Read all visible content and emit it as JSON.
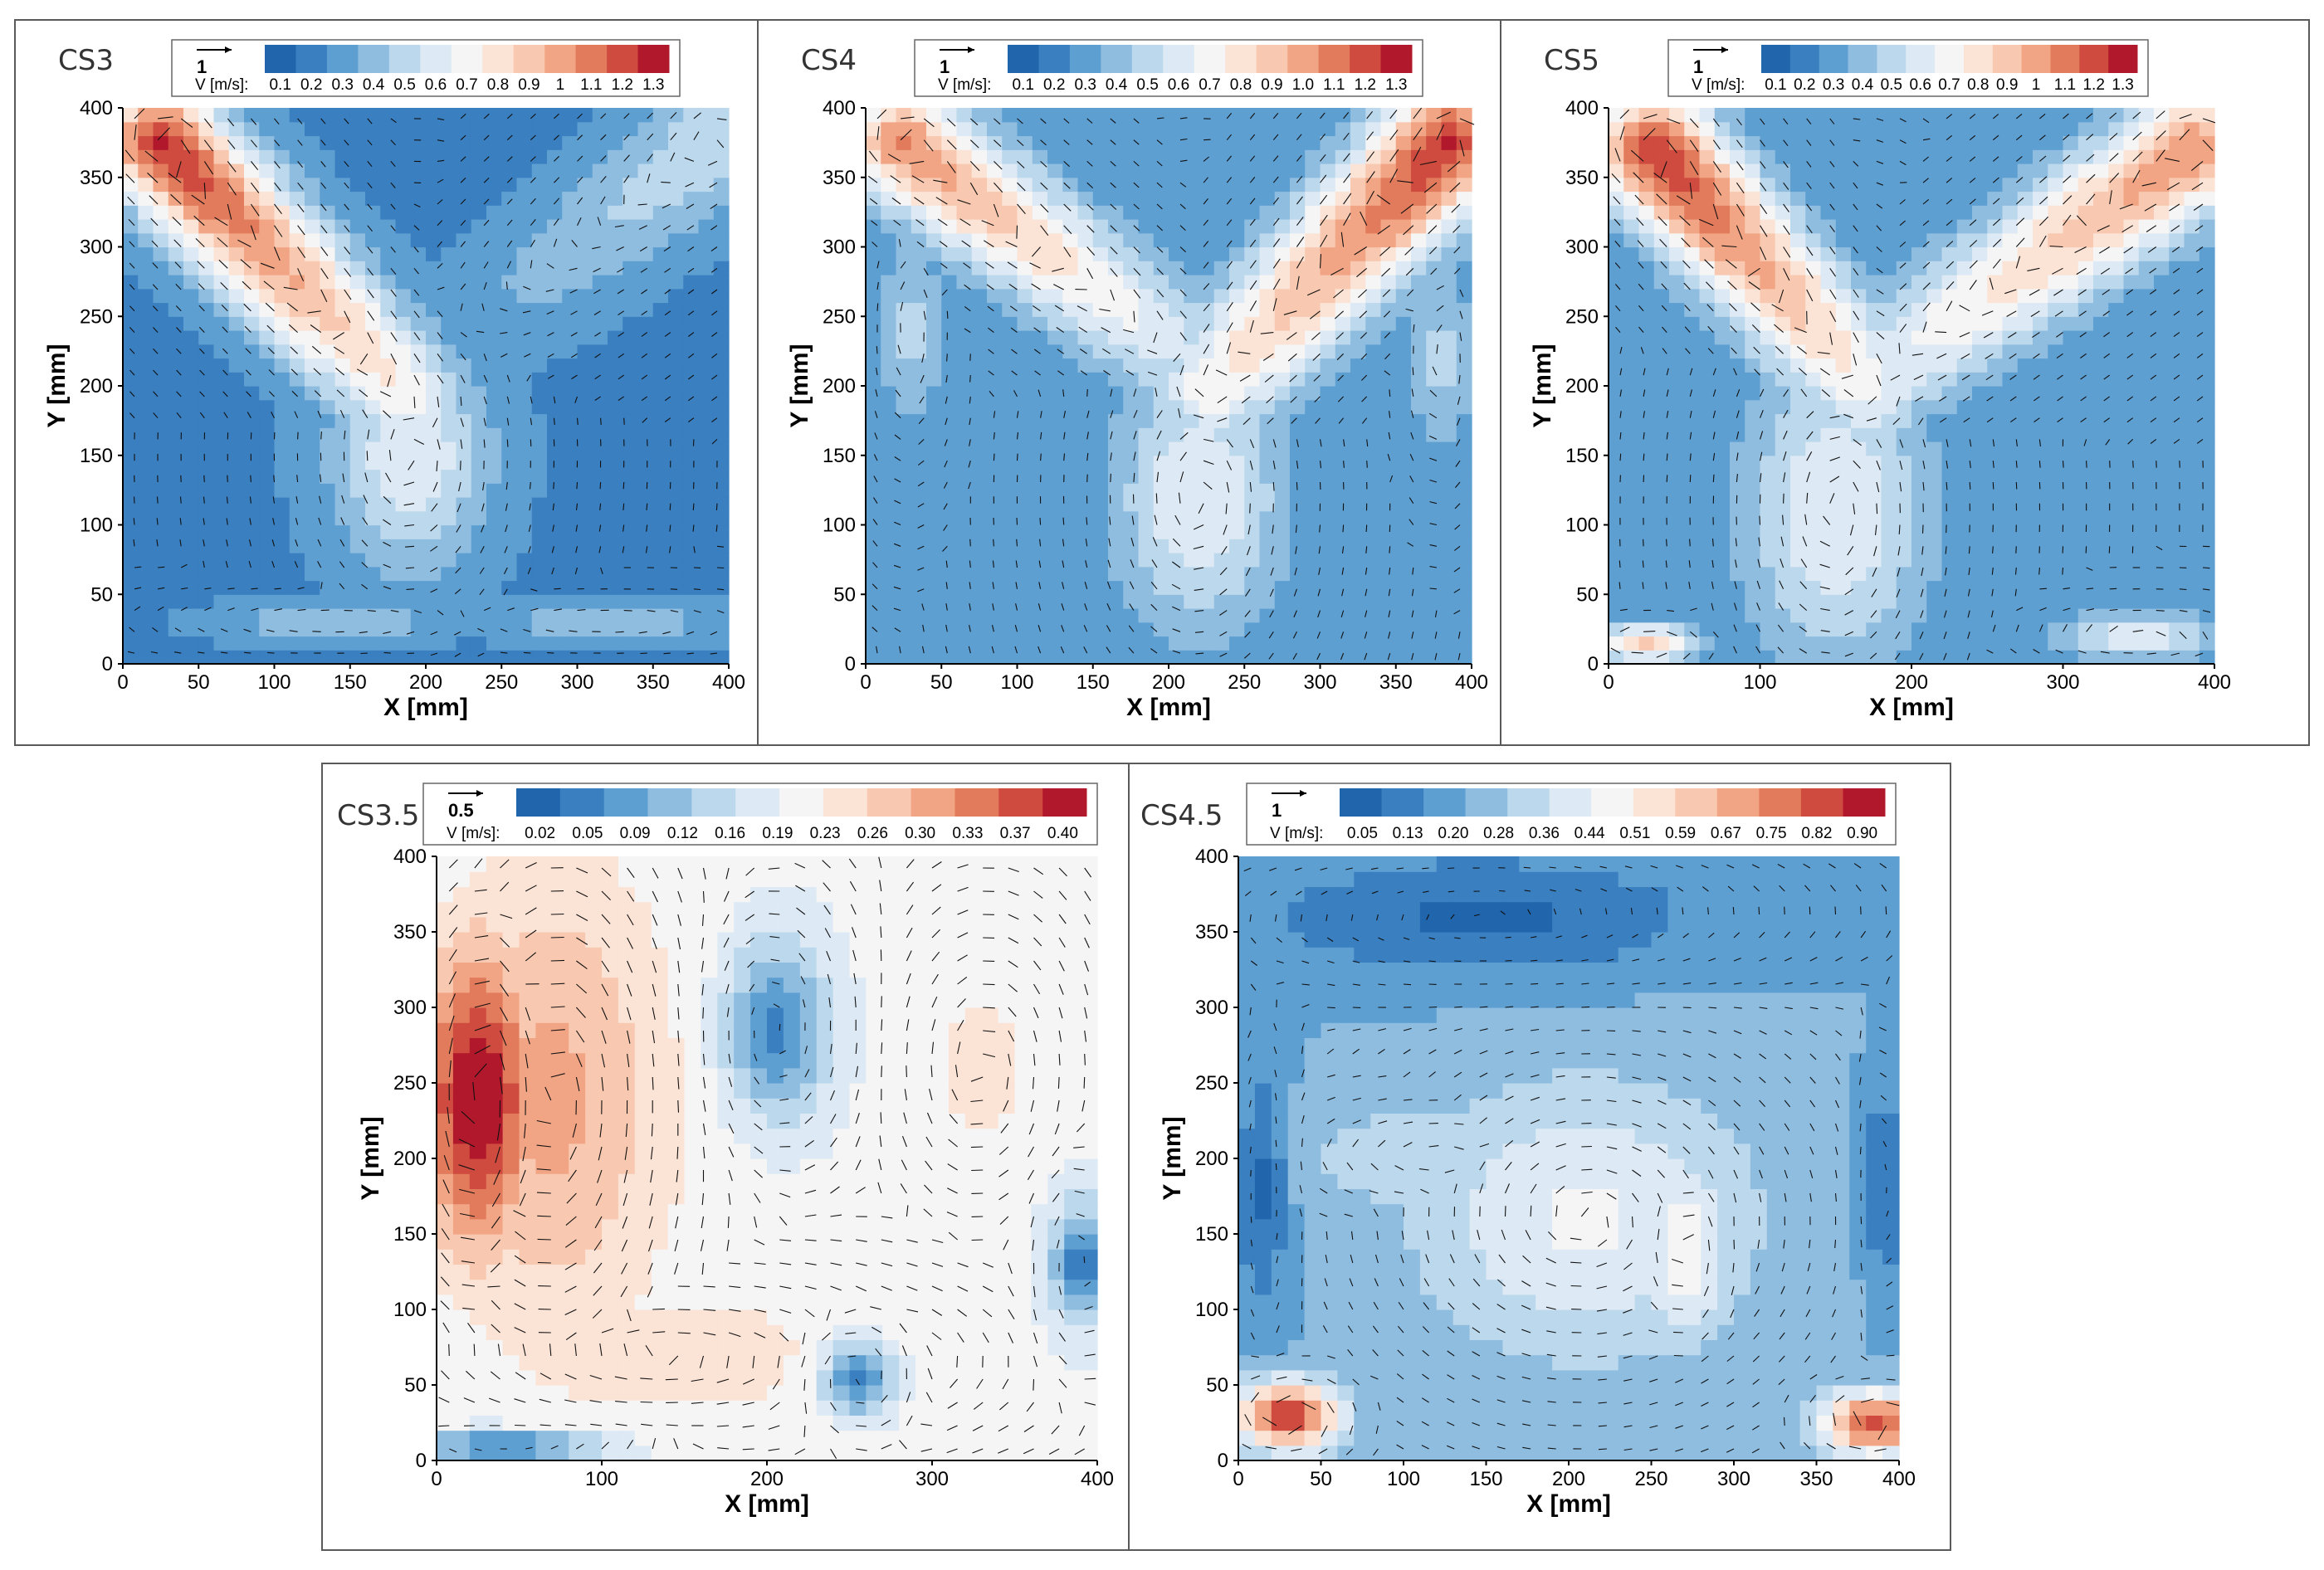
{
  "figure": {
    "colors": [
      "#2166ac",
      "#3a7fc0",
      "#5e9fd2",
      "#8fbde0",
      "#bcd8ec",
      "#dde9f4",
      "#f5f5f5",
      "#fbe3d6",
      "#f8c9b0",
      "#f1a585",
      "#e27a5c",
      "#cf4b3f",
      "#b2182b"
    ]
  },
  "chart_data": [
    {
      "type": "heatmap",
      "panel": "CS3",
      "title": "CS3",
      "xlabel": "X [mm]",
      "ylabel": "Y [mm]",
      "xlim": [
        0,
        400
      ],
      "ylim": [
        0,
        400
      ],
      "x_ticks": [
        "0",
        "50",
        "100",
        "150",
        "200",
        "250",
        "300",
        "350",
        "400"
      ],
      "y_ticks": [
        "0",
        "50",
        "100",
        "150",
        "200",
        "250",
        "300",
        "350",
        "400"
      ],
      "colorbar_label": "V [m/s]:",
      "colorbar_ticks": [
        "0.1",
        "0.2",
        "0.3",
        "0.4",
        "0.5",
        "0.6",
        "0.7",
        "0.8",
        "0.9",
        "1",
        "1.1",
        "1.2",
        "1.3"
      ],
      "vmax": 1.3,
      "reference_vector": "1",
      "features": [
        {
          "kind": "jet",
          "from": [
            25,
            375
          ],
          "to": [
            190,
            190
          ],
          "peak": 1.2,
          "width": 28
        },
        {
          "kind": "jet",
          "from": [
            390,
            375
          ],
          "to": [
            240,
            250
          ],
          "peak": 0.5,
          "width": 30
        },
        {
          "kind": "blob",
          "center": [
            190,
            150
          ],
          "peak": 0.6,
          "rx": 50,
          "ry": 80
        },
        {
          "kind": "blob",
          "center": [
            140,
            30
          ],
          "peak": 0.4,
          "rx": 70,
          "ry": 14
        },
        {
          "kind": "blob",
          "center": [
            320,
            30
          ],
          "peak": 0.4,
          "rx": 70,
          "ry": 14
        }
      ],
      "background": 0.18
    },
    {
      "type": "heatmap",
      "panel": "CS4",
      "title": "CS4",
      "xlabel": "X [mm]",
      "ylabel": "Y [mm]",
      "xlim": [
        0,
        400
      ],
      "ylim": [
        0,
        400
      ],
      "x_ticks": [
        "0",
        "50",
        "100",
        "150",
        "200",
        "250",
        "300",
        "350",
        "400"
      ],
      "y_ticks": [
        "0",
        "50",
        "100",
        "150",
        "200",
        "250",
        "300",
        "350",
        "400"
      ],
      "colorbar_label": "V [m/s]:",
      "colorbar_ticks": [
        "0.1",
        "0.2",
        "0.3",
        "0.4",
        "0.5",
        "0.6",
        "0.7",
        "0.8",
        "0.9",
        "1.0",
        "1.1",
        "1.2",
        "1.3"
      ],
      "vmax": 1.3,
      "reference_vector": "1",
      "features": [
        {
          "kind": "jet",
          "from": [
            25,
            375
          ],
          "to": [
            200,
            230
          ],
          "peak": 1.0,
          "width": 28
        },
        {
          "kind": "jet",
          "from": [
            385,
            375
          ],
          "to": [
            230,
            200
          ],
          "peak": 1.2,
          "width": 30
        },
        {
          "kind": "blob",
          "center": [
            220,
            120
          ],
          "peak": 0.6,
          "rx": 55,
          "ry": 95
        },
        {
          "kind": "blob",
          "center": [
            30,
            240
          ],
          "peak": 0.45,
          "rx": 20,
          "ry": 60
        },
        {
          "kind": "blob",
          "center": [
            380,
            220
          ],
          "peak": 0.45,
          "rx": 20,
          "ry": 60
        }
      ],
      "background": 0.2
    },
    {
      "type": "heatmap",
      "panel": "CS5",
      "title": "CS5",
      "xlabel": "X [mm]",
      "ylabel": "Y [mm]",
      "xlim": [
        0,
        400
      ],
      "ylim": [
        0,
        400
      ],
      "x_ticks": [
        "0",
        "100",
        "200",
        "300",
        "400"
      ],
      "y_ticks": [
        "0",
        "50",
        "100",
        "150",
        "200",
        "250",
        "300",
        "350",
        "400"
      ],
      "colorbar_label": "V [m/s]:",
      "colorbar_ticks": [
        "0.1",
        "0.2",
        "0.3",
        "0.4",
        "0.5",
        "0.6",
        "0.7",
        "0.8",
        "0.9",
        "1",
        "1.1",
        "1.2",
        "1.3"
      ],
      "vmax": 1.3,
      "reference_vector": "1",
      "features": [
        {
          "kind": "jet",
          "from": [
            30,
            370
          ],
          "to": [
            170,
            200
          ],
          "peak": 1.2,
          "width": 28
        },
        {
          "kind": "jet",
          "from": [
            385,
            370
          ],
          "to": [
            180,
            210
          ],
          "peak": 1.0,
          "width": 30
        },
        {
          "kind": "blob",
          "center": [
            150,
            110
          ],
          "peak": 0.6,
          "rx": 60,
          "ry": 110
        },
        {
          "kind": "blob",
          "center": [
            25,
            15
          ],
          "peak": 0.85,
          "rx": 30,
          "ry": 14
        },
        {
          "kind": "blob",
          "center": [
            350,
            20
          ],
          "peak": 0.55,
          "rx": 55,
          "ry": 18
        }
      ],
      "background": 0.2
    },
    {
      "type": "heatmap",
      "panel": "CS3.5",
      "title": "CS3.5",
      "xlabel": "X [mm]",
      "ylabel": "Y [mm]",
      "xlim": [
        0,
        400
      ],
      "ylim": [
        0,
        400
      ],
      "x_ticks": [
        "0",
        "100",
        "200",
        "300",
        "400"
      ],
      "y_ticks": [
        "0",
        "50",
        "100",
        "150",
        "200",
        "250",
        "300",
        "350",
        "400"
      ],
      "colorbar_label": "V [m/s]:",
      "colorbar_ticks": [
        "0.02",
        "0.05",
        "0.09",
        "0.12",
        "0.16",
        "0.19",
        "0.23",
        "0.26",
        "0.30",
        "0.33",
        "0.37",
        "0.40"
      ],
      "vmax": 0.42,
      "reference_vector": "0.5",
      "features": [
        {
          "kind": "blob",
          "center": [
            25,
            240
          ],
          "peak": 0.42,
          "rx": 35,
          "ry": 100
        },
        {
          "kind": "blob",
          "center": [
            70,
            240
          ],
          "peak": 0.3,
          "rx": 70,
          "ry": 150
        },
        {
          "kind": "blob",
          "center": [
            140,
            70
          ],
          "peak": 0.24,
          "rx": 140,
          "ry": 50
        },
        {
          "kind": "blob",
          "center": [
            330,
            260
          ],
          "peak": 0.24,
          "rx": 35,
          "ry": 60
        },
        {
          "kind": "blob",
          "center": [
            200,
            340
          ],
          "peak": 0.2,
          "rx": 160,
          "ry": 60
        }
      ],
      "background": 0.2,
      "lows": [
        {
          "center": [
            205,
            285
          ],
          "rx": 30,
          "ry": 55
        },
        {
          "center": [
            255,
            55
          ],
          "rx": 22,
          "ry": 25
        },
        {
          "center": [
            390,
            130
          ],
          "rx": 18,
          "ry": 40
        },
        {
          "center": [
            40,
            10
          ],
          "rx": 60,
          "ry": 10
        }
      ]
    },
    {
      "type": "heatmap",
      "panel": "CS4.5",
      "title": "CS4.5",
      "xlabel": "X [mm]",
      "ylabel": "Y [mm]",
      "xlim": [
        0,
        400
      ],
      "ylim": [
        0,
        400
      ],
      "x_ticks": [
        "0",
        "50",
        "100",
        "150",
        "200",
        "250",
        "300",
        "350",
        "400"
      ],
      "y_ticks": [
        "0",
        "50",
        "100",
        "150",
        "200",
        "250",
        "300",
        "350",
        "400"
      ],
      "colorbar_label": "V [m/s]:",
      "colorbar_ticks": [
        "0.05",
        "0.13",
        "0.20",
        "0.28",
        "0.36",
        "0.44",
        "0.51",
        "0.59",
        "0.67",
        "0.75",
        "0.82",
        "0.90"
      ],
      "vmax": 0.95,
      "reference_vector": "1",
      "features": [
        {
          "kind": "blob",
          "center": [
            30,
            30
          ],
          "peak": 0.9,
          "rx": 30,
          "ry": 22
        },
        {
          "kind": "blob",
          "center": [
            385,
            25
          ],
          "peak": 0.85,
          "rx": 30,
          "ry": 20
        },
        {
          "kind": "blob",
          "center": [
            210,
            160
          ],
          "peak": 0.45,
          "rx": 100,
          "ry": 90
        },
        {
          "kind": "blob",
          "center": [
            270,
            140
          ],
          "peak": 0.5,
          "rx": 30,
          "ry": 60
        },
        {
          "kind": "blob",
          "center": [
            120,
            200
          ],
          "peak": 0.35,
          "rx": 90,
          "ry": 40
        }
      ],
      "background": 0.22,
      "lows": [
        {
          "center": [
            150,
            360
          ],
          "rx": 130,
          "ry": 40
        },
        {
          "center": [
            15,
            180
          ],
          "rx": 15,
          "ry": 80
        },
        {
          "center": [
            390,
            180
          ],
          "rx": 12,
          "ry": 60
        }
      ]
    }
  ]
}
